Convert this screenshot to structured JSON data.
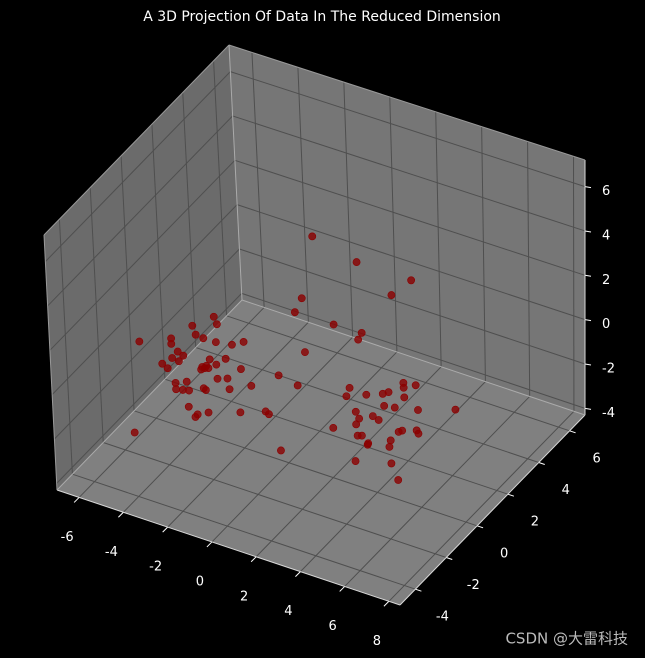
{
  "chart_data": {
    "type": "scatter3d",
    "title": "A 3D Projection Of Data In The Reduced Dimension",
    "color": "#8b0000",
    "xlim": [
      -7,
      8.5
    ],
    "ylim": [
      -5,
      7
    ],
    "zlim": [
      -4.3,
      7.2
    ],
    "xticks": [
      -6,
      -4,
      -2,
      0,
      2,
      4,
      6,
      8
    ],
    "yticks": [
      -4,
      -2,
      0,
      2,
      4,
      6
    ],
    "zticks": [
      -4,
      -2,
      0,
      2,
      4,
      6
    ],
    "grid": true,
    "x": [
      -2.6,
      -3.1,
      -2.0,
      -3.8,
      -1.5,
      -2.9,
      -2.2,
      -3.5,
      -1.8,
      -2.7,
      -4.2,
      -3.0,
      -1.2,
      -2.4,
      -3.3,
      -2.1,
      -2.8,
      -3.6,
      -1.9,
      -2.5,
      -4.0,
      -1.4,
      -3.2,
      -2.3,
      -2.9,
      -1.7,
      -3.9,
      -2.6,
      -2.0,
      -3.4,
      -1.1,
      -4.5,
      -2.8,
      -2.2,
      -3.0,
      -1.6,
      -3.7,
      -2.4,
      -2.7,
      -3.1,
      4.1,
      3.5,
      4.8,
      3.0,
      5.2,
      4.4,
      3.8,
      2.9,
      4.9,
      5.6,
      3.3,
      4.2,
      4.6,
      3.7,
      5.0,
      2.6,
      4.0,
      5.4,
      3.1,
      4.5,
      3.9,
      4.8,
      3.4,
      5.8,
      4.3,
      2.8,
      4.7,
      3.6,
      5.1,
      4.0,
      0.5,
      1.2,
      -0.4,
      2.0,
      0.8,
      1.6,
      -1.0,
      2.8,
      0.0,
      1.0,
      -5.5,
      -5.0,
      3.2,
      6.5,
      1.8,
      -0.8,
      2.4,
      0.3,
      -4.8,
      6.0
    ],
    "y": [
      -1.4,
      -0.8,
      -2.1,
      -1.0,
      -1.7,
      -2.5,
      -0.3,
      -1.9,
      -1.1,
      -0.5,
      -1.6,
      -2.8,
      -1.3,
      -1.8,
      -0.2,
      -2.3,
      -1.2,
      -0.6,
      -2.7,
      -1.5,
      -2.2,
      -0.9,
      -1.7,
      -3.0,
      -0.4,
      -2.0,
      -1.3,
      -0.1,
      -1.6,
      -2.4,
      -0.7,
      -0.9,
      -1.9,
      -2.6,
      -1.1,
      -0.4,
      -2.0,
      -1.0,
      -3.2,
      -1.5,
      0.0,
      -0.6,
      0.5,
      0.8,
      -0.9,
      1.2,
      -0.3,
      -1.2,
      -0.1,
      0.4,
      1.5,
      -1.5,
      0.9,
      0.2,
      -0.5,
      0.1,
      1.8,
      -1.1,
      -0.4,
      0.7,
      -0.8,
      1.4,
      0.3,
      0.0,
      -1.8,
      0.6,
      -0.2,
      1.0,
      1.1,
      -1.3,
      0.5,
      -1.0,
      1.2,
      2.0,
      -2.3,
      0.8,
      2.5,
      2.8,
      -0.5,
      3.2,
      -1.5,
      0.5,
      3.5,
      1.5,
      -3.0,
      3.0,
      1.2,
      -1.8,
      -3.0,
      -1.5
    ],
    "z": [
      0.2,
      -0.5,
      0.8,
      -1.2,
      1.1,
      -0.2,
      0.5,
      0.9,
      -0.8,
      1.4,
      -0.3,
      0.3,
      -1.5,
      1.8,
      -0.6,
      0.0,
      -1.1,
      0.7,
      1.2,
      -1.8,
      0.4,
      0.1,
      -0.9,
      -0.4,
      1.6,
      2.0,
      -0.1,
      -1.3,
      0.6,
      1.0,
      -0.7,
      0.2,
      2.3,
      -1.0,
      -0.2,
      0.9,
      1.5,
      -0.6,
      0.4,
      -2.2,
      -1.0,
      -0.4,
      -1.6,
      -0.8,
      -1.2,
      -0.3,
      -2.0,
      -0.9,
      -0.1,
      -1.4,
      -1.7,
      -0.6,
      0.2,
      -1.1,
      -2.3,
      -0.5,
      -1.3,
      -0.7,
      0.4,
      -1.9,
      -1.2,
      -0.2,
      -2.5,
      -0.9,
      -1.5,
      -1.8,
      0.6,
      -0.7,
      -1.0,
      -0.3,
      0.5,
      0.3,
      1.5,
      0.8,
      -0.2,
      1.9,
      1.0,
      2.2,
      0.0,
      2.8,
      0.4,
      -1.5,
      2.5,
      -0.8,
      -1.0,
      3.5,
      1.2,
      -0.6,
      -2.4,
      -2.0
    ]
  },
  "watermark": "CSDN @大雷科技"
}
